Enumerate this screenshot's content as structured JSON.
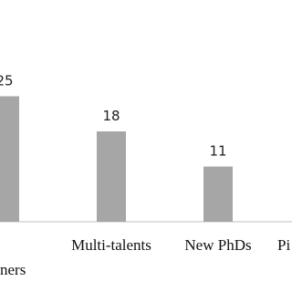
{
  "chart_data": {
    "type": "bar",
    "categories": [
      "ners",
      "Multi-talents",
      "New PhDs",
      "Pi"
    ],
    "values": [
      25,
      18,
      11,
      null
    ],
    "color": "#a6a6a6",
    "ylim": [
      0,
      30
    ]
  }
}
